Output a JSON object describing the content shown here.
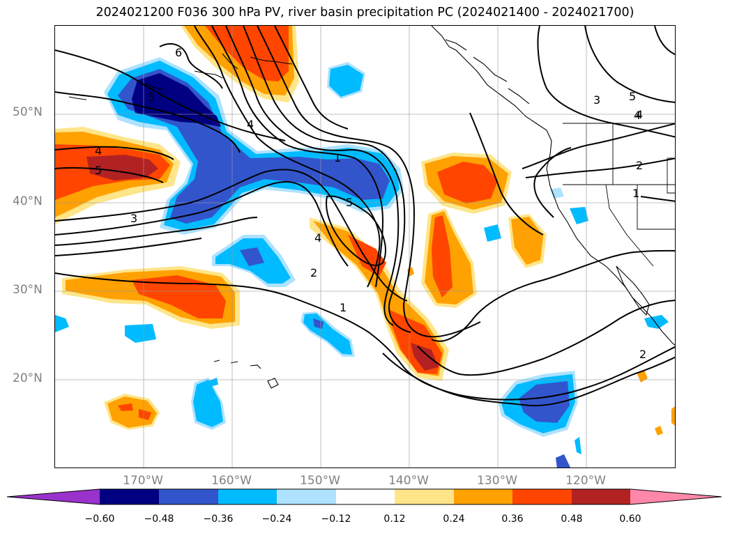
{
  "title": "2024021200 F036 300 hPa PV, river basin precipitation PC (2024021400 - 2024021700)",
  "latitude_labels": [
    "50°N",
    "40°N",
    "30°N",
    "20°N"
  ],
  "longitude_labels": [
    "170°W",
    "160°W",
    "150°W",
    "140°W",
    "130°W",
    "120°W"
  ],
  "contour_labels": [
    "6",
    "5",
    "4",
    "5",
    "4",
    "3",
    "4",
    "1",
    "5",
    "4",
    "2",
    "1",
    "3",
    "5",
    "4",
    "2",
    "1",
    "2"
  ],
  "colorbar": {
    "ticks": [
      "−0.60",
      "−0.48",
      "−0.36",
      "−0.24",
      "−0.12",
      "0.12",
      "0.24",
      "0.36",
      "0.48",
      "0.60"
    ],
    "colors": [
      "#9933cc",
      "#000080",
      "#3355cc",
      "#00bbff",
      "#aee2ff",
      "#ffffff",
      "#ffe58a",
      "#ffa100",
      "#ff4500",
      "#b22222",
      "#ff88aa"
    ]
  }
}
